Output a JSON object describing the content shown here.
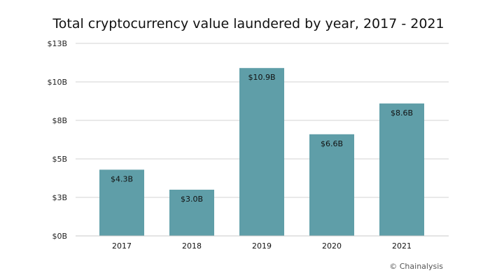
{
  "chart_data": {
    "type": "bar",
    "title": "Total cryptocurrency value laundered by year, 2017 - 2021",
    "xlabel": "",
    "ylabel": "",
    "categories": [
      "2017",
      "2018",
      "2019",
      "2020",
      "2021"
    ],
    "values": [
      4.3,
      3.0,
      10.9,
      6.6,
      8.6
    ],
    "data_labels": [
      "$4.3B",
      "$3.0B",
      "$10.9B",
      "$6.6B",
      "$8.6B"
    ],
    "yticks": [
      0,
      2.5,
      5,
      7.5,
      10,
      12.5
    ],
    "ytick_labels": [
      "$0B",
      "$3B",
      "$5B",
      "$8B",
      "$10B",
      "$13B"
    ],
    "ylim": [
      0,
      12.5
    ],
    "grid": true,
    "bar_color": "#5f9ea8",
    "source": "© Chainalysis"
  }
}
